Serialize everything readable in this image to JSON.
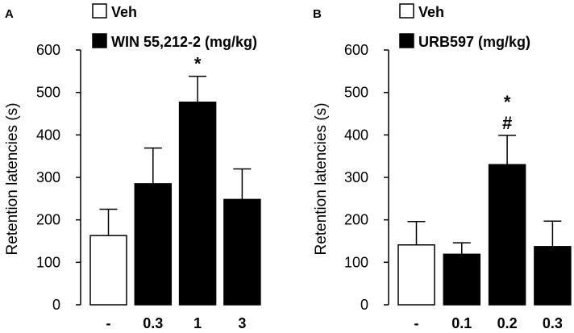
{
  "colors": {
    "veh": "#ffffff",
    "drug": "#000000",
    "stroke": "#000000"
  },
  "chart_data": [
    {
      "type": "bar",
      "panel": "A",
      "legend": {
        "veh": "Veh",
        "drug": "WIN 55,212-2 (mg/kg)"
      },
      "ylabel": "Retention latencies (s)",
      "ylim": [
        0,
        600
      ],
      "yticks": [
        "0",
        "100",
        "200",
        "300",
        "400",
        "500",
        "600"
      ],
      "categories": [
        "-",
        "0.3",
        "1",
        "3"
      ],
      "fills": [
        "veh",
        "drug",
        "drug",
        "drug"
      ],
      "values": [
        163,
        285,
        477,
        248
      ],
      "errors": [
        62,
        84,
        61,
        72
      ],
      "annotations": [
        "",
        "",
        "*",
        ""
      ]
    },
    {
      "type": "bar",
      "panel": "B",
      "legend": {
        "veh": "Veh",
        "drug": "URB597 (mg/kg)"
      },
      "ylabel": "Retention latencies (s)",
      "ylim": [
        0,
        600
      ],
      "yticks": [
        "0",
        "100",
        "200",
        "300",
        "400",
        "500",
        "600"
      ],
      "categories": [
        "-",
        "0.1",
        "0.2",
        "0.3"
      ],
      "fills": [
        "veh",
        "drug",
        "drug",
        "drug"
      ],
      "values": [
        141,
        119,
        330,
        137
      ],
      "errors": [
        55,
        27,
        69,
        60
      ],
      "annotations": [
        "",
        "",
        "*\n#",
        ""
      ]
    }
  ]
}
